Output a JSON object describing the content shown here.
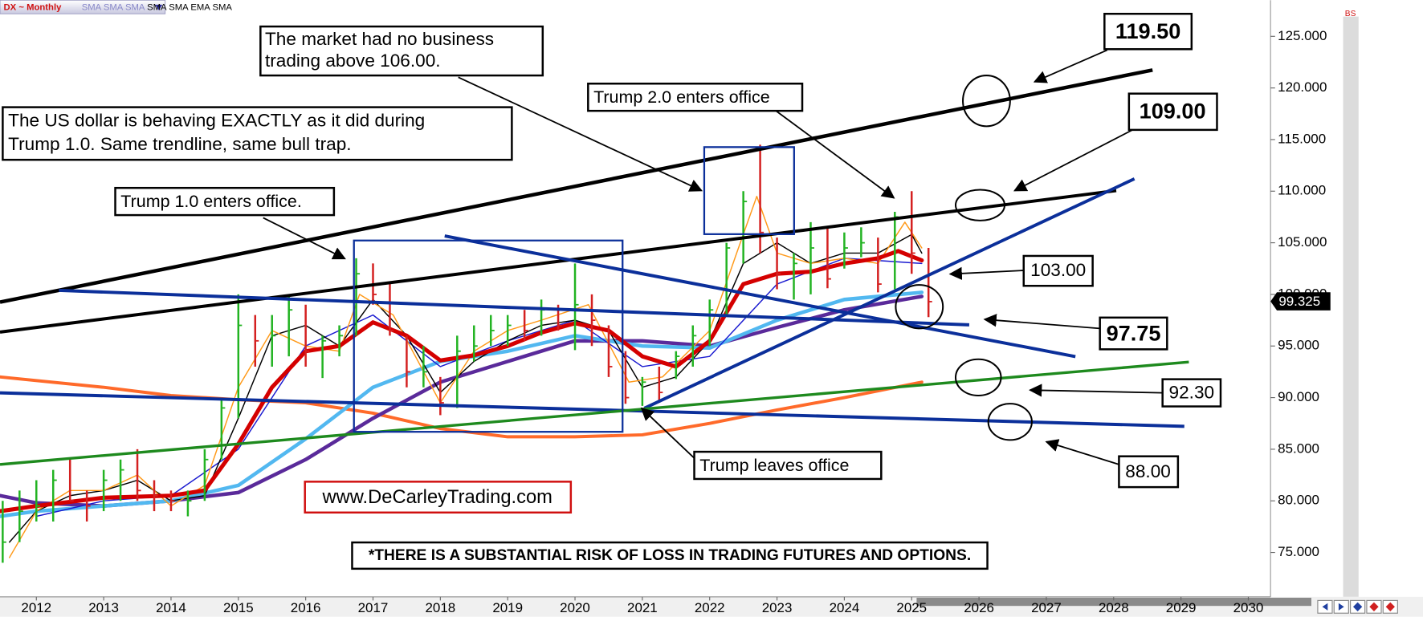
{
  "chart_data": {
    "type": "ohlc",
    "title": "DX ~ Monthly",
    "indicators": [
      "SMA",
      "SMA",
      "SMA",
      "SMA",
      "SMA",
      "EMA",
      "SMA"
    ],
    "buy_sell": "BS",
    "x": [
      2011.5,
      2011.75,
      2012.0,
      2012.25,
      2012.5,
      2012.75,
      2013.0,
      2013.25,
      2013.5,
      2013.75,
      2014.0,
      2014.25,
      2014.5,
      2014.75,
      2015.0,
      2015.25,
      2015.5,
      2015.75,
      2016.0,
      2016.25,
      2016.5,
      2016.75,
      2017.0,
      2017.25,
      2017.5,
      2017.75,
      2018.0,
      2018.25,
      2018.5,
      2018.75,
      2019.0,
      2019.25,
      2019.5,
      2019.75,
      2020.0,
      2020.25,
      2020.5,
      2020.75,
      2021.0,
      2021.25,
      2021.5,
      2021.75,
      2022.0,
      2022.25,
      2022.5,
      2022.75,
      2023.0,
      2023.25,
      2023.5,
      2023.75,
      2024.0,
      2024.25,
      2024.5,
      2024.75,
      2025.0,
      2025.25
    ],
    "high": [
      80,
      81,
      82,
      83,
      84,
      81,
      83,
      84,
      85,
      82,
      81,
      81,
      85,
      90,
      100,
      98,
      98,
      100,
      99,
      96,
      97,
      103.5,
      103,
      101,
      96,
      95,
      92,
      96,
      97,
      98,
      98,
      98.5,
      99.5,
      99,
      103,
      100,
      97,
      94.5,
      92,
      93,
      94.5,
      97,
      99.5,
      105,
      110,
      114.5,
      105.5,
      104,
      107,
      106.5,
      106,
      106.5,
      105.5,
      108,
      110,
      104.5
    ],
    "low": [
      74,
      76,
      78,
      78,
      80,
      78,
      79,
      80,
      80,
      79,
      79,
      78.5,
      80,
      84,
      88,
      93,
      93,
      94,
      93,
      91.9,
      94,
      96,
      99,
      96,
      91,
      91,
      88.3,
      89,
      93.5,
      95,
      95,
      95.5,
      96,
      96.5,
      94.6,
      95,
      92,
      89.4,
      89.2,
      89.5,
      91.8,
      93,
      95,
      98,
      103,
      104,
      100.5,
      99.5,
      100,
      100.6,
      102.5,
      103.6,
      100.2,
      100.5,
      102,
      97.8
    ],
    "close": [
      76,
      79,
      79.5,
      82,
      80,
      79.5,
      82,
      83,
      81,
      80.5,
      80,
      80,
      84,
      89,
      97,
      95.5,
      96,
      98.5,
      94.5,
      95.5,
      96,
      102,
      100,
      96.5,
      92.5,
      92.5,
      89.5,
      94.5,
      95,
      96.5,
      97,
      96.5,
      98.5,
      97,
      99,
      97.5,
      93,
      90,
      91.5,
      90.5,
      94,
      96,
      98.5,
      104.5,
      109,
      106,
      102,
      103,
      104.5,
      101.5,
      104.5,
      105,
      101,
      107.5,
      104,
      99.3
    ],
    "up_color": "#22b322",
    "down_color": "#d42020",
    "moving_averages": [
      {
        "color": "#ff6a2a",
        "width": 3.5,
        "x": [
          2011.46,
          2013,
          2014,
          2015,
          2016,
          2017,
          2018,
          2019,
          2020,
          2021,
          2022,
          2023,
          2024,
          2025.15
        ],
        "values": [
          92,
          91,
          90.2,
          89.8,
          89.5,
          88.5,
          87,
          86.2,
          86.2,
          86.4,
          87.5,
          88.8,
          90,
          91.5
        ]
      },
      {
        "color": "#5a2a9a",
        "width": 4,
        "x": [
          2011.46,
          2012,
          2013,
          2014,
          2015,
          2016,
          2017,
          2018,
          2019,
          2020,
          2021,
          2022,
          2023,
          2024,
          2025.15
        ],
        "values": [
          80.5,
          79.8,
          79.5,
          80,
          80.8,
          84,
          88,
          91.5,
          93.5,
          95.5,
          95.5,
          95,
          96.8,
          98.5,
          99.8
        ]
      },
      {
        "color": "#52b8f0",
        "width": 4,
        "x": [
          2011.46,
          2012,
          2013,
          2014,
          2015,
          2016,
          2017,
          2018,
          2019,
          2020,
          2021,
          2022,
          2023,
          2024,
          2025.15
        ],
        "values": [
          78.5,
          79,
          79.5,
          80,
          81.5,
          86,
          91,
          93.5,
          94.5,
          96,
          95,
          94.8,
          97.5,
          99.5,
          100.2
        ]
      },
      {
        "color": "#1a1ad0",
        "width": 1.3,
        "x": [
          2012,
          2013,
          2014,
          2015,
          2016,
          2017,
          2018,
          2019,
          2020,
          2021,
          2022,
          2023,
          2024,
          2025.15
        ],
        "values": [
          78.5,
          80,
          80.5,
          85,
          95,
          98,
          93,
          95.5,
          97.5,
          93,
          94,
          101,
          103.5,
          103
        ]
      },
      {
        "color": "#000000",
        "width": 1.3,
        "x": [
          2011.6,
          2012,
          2012.5,
          2013,
          2013.5,
          2014,
          2014.5,
          2015,
          2015.5,
          2016,
          2016.5,
          2017,
          2017.5,
          2018,
          2018.5,
          2019,
          2019.5,
          2020,
          2020.5,
          2021,
          2021.5,
          2022,
          2022.5,
          2023,
          2023.5,
          2024,
          2024.5,
          2025,
          2025.15
        ],
        "values": [
          76,
          79,
          80.5,
          81,
          82,
          80,
          80.5,
          88,
          96,
          97,
          95,
          99.5,
          96,
          90.5,
          93.5,
          95.5,
          97,
          97.5,
          96.5,
          91,
          92,
          95.5,
          103,
          105,
          103,
          104,
          104,
          105.8,
          104
        ]
      },
      {
        "color": "#ff9a1a",
        "width": 1.3,
        "x": [
          2011.6,
          2012,
          2012.5,
          2013,
          2013.5,
          2014,
          2014.5,
          2015,
          2015.5,
          2016,
          2016.5,
          2016.8,
          2017.3,
          2018,
          2018.5,
          2019,
          2019.5,
          2020.2,
          2020.8,
          2021.3,
          2022,
          2022.4,
          2022.7,
          2023,
          2023.5,
          2024,
          2024.5,
          2024.9,
          2025.15
        ],
        "values": [
          74.5,
          79,
          81,
          81,
          82.5,
          79.5,
          81.5,
          91,
          96.5,
          95,
          94.5,
          100,
          98,
          89.5,
          94.5,
          96.5,
          97.5,
          99,
          91.5,
          92,
          96.5,
          104,
          109.5,
          104,
          103,
          103.5,
          103,
          107,
          104.5
        ]
      },
      {
        "color": "#d40000",
        "width": 4.5,
        "x": [
          2011.46,
          2012,
          2013,
          2014,
          2014.5,
          2015,
          2015.5,
          2016,
          2016.5,
          2017,
          2017.5,
          2018,
          2018.5,
          2019,
          2019.5,
          2020,
          2020.5,
          2021,
          2021.5,
          2022,
          2022.5,
          2023,
          2023.5,
          2024,
          2024.5,
          2024.8,
          2025.15
        ],
        "values": [
          79,
          79.5,
          80.3,
          80.5,
          81,
          85.5,
          91,
          94.5,
          95,
          97.3,
          96,
          93.6,
          94.1,
          95,
          96.3,
          97.2,
          96.5,
          94,
          93,
          95.5,
          101,
          102,
          102.2,
          103,
          103.5,
          104.2,
          103.3
        ]
      }
    ],
    "last_price": 99.325,
    "xlim": [
      2011.46,
      2030.33
    ],
    "ylim": [
      70.7,
      128.5
    ],
    "xticks": [
      2012,
      2013,
      2014,
      2015,
      2016,
      2017,
      2018,
      2019,
      2020,
      2021,
      2022,
      2023,
      2024,
      2025,
      2026,
      2027,
      2028,
      2029,
      2030
    ],
    "yticks": [
      {
        "value": 75,
        "label": "75.000"
      },
      {
        "value": 80,
        "label": "80.000"
      },
      {
        "value": 85,
        "label": "85.000"
      },
      {
        "value": 90,
        "label": "90.000"
      },
      {
        "value": 95,
        "label": "95.000"
      },
      {
        "value": 100,
        "label": "100.000"
      },
      {
        "value": 105,
        "label": "105.000"
      },
      {
        "value": 110,
        "label": "110.000"
      },
      {
        "value": 115,
        "label": "115.000"
      },
      {
        "value": 120,
        "label": "120.000"
      },
      {
        "value": 125,
        "label": "125.000"
      }
    ],
    "annotations": {
      "market_note": [
        "The market had no business",
        "trading above 106.00."
      ],
      "dollar_note": [
        "The US dollar is behaving EXACTLY as it did during",
        "Trump 1.0. Same trendline, same bull trap."
      ],
      "trump1": "Trump 1.0 enters office.",
      "trump2": "Trump 2.0 enters office",
      "trump_leaves": "Trump leaves office",
      "website": "www.DeCarleyTrading.com",
      "disclaimer": "*THERE IS A SUBSTANTIAL RISK OF LOSS IN TRADING FUTURES AND OPTIONS.",
      "levels": [
        "119.50",
        "109.00",
        "103.00",
        "97.75",
        "92.30",
        "88.00"
      ]
    }
  }
}
